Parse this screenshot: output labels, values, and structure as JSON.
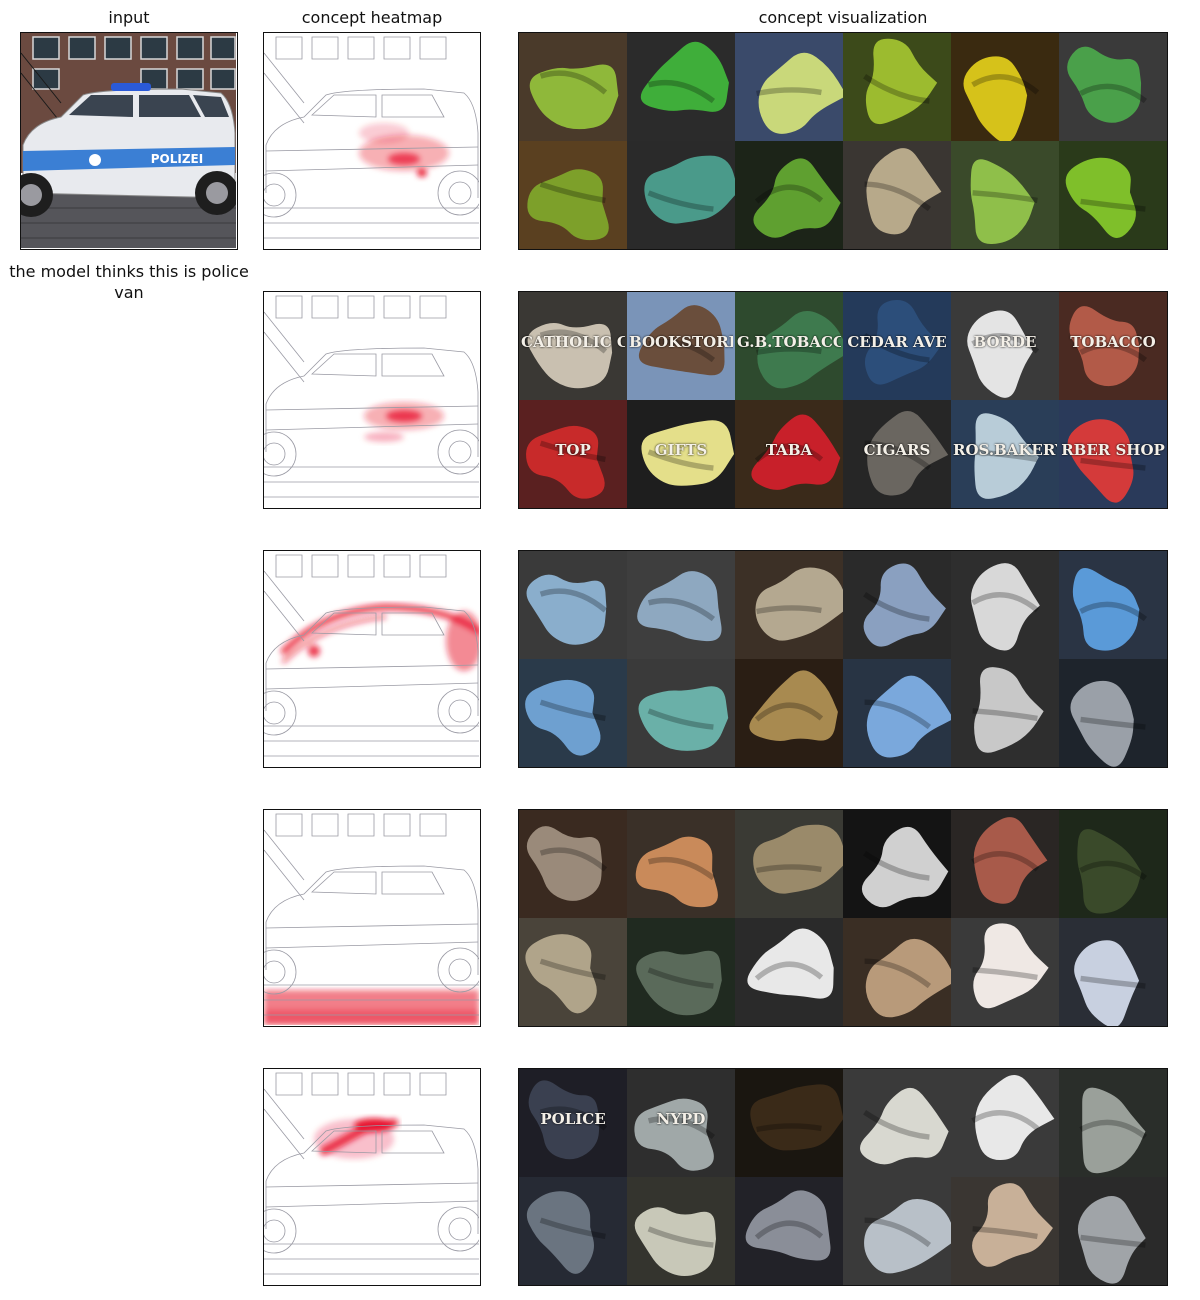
{
  "columns": {
    "input": "input",
    "heatmap": "concept heatmap",
    "visualization": "concept visualization"
  },
  "input_image": {
    "subject": "police car",
    "door_text": "POLIZEI"
  },
  "prediction_caption": "the model thinks this is police van",
  "concept_rows": [
    {
      "heatmap_focus": "wheel-and-panel",
      "tiles": [
        {
          "bg": "#4a3a2a",
          "blob": "#8fb83a",
          "label": ""
        },
        {
          "bg": "#2b2b2b",
          "blob": "#3fae3a",
          "label": ""
        },
        {
          "bg": "#3a4a6a",
          "blob": "#c9d87a",
          "label": ""
        },
        {
          "bg": "#3c4a1a",
          "blob": "#9cbb2f",
          "label": ""
        },
        {
          "bg": "#3a2a10",
          "blob": "#d6c21a",
          "label": ""
        },
        {
          "bg": "#3a3a3a",
          "blob": "#4aa04a",
          "label": ""
        },
        {
          "bg": "#5a4020",
          "blob": "#7da02a",
          "label": ""
        },
        {
          "bg": "#2a2a2a",
          "blob": "#4a9a8a",
          "label": ""
        },
        {
          "bg": "#1c2418",
          "blob": "#5fa030",
          "label": ""
        },
        {
          "bg": "#3a3632",
          "blob": "#b7a98a",
          "label": ""
        },
        {
          "bg": "#3a4a2a",
          "blob": "#8fbf4a",
          "label": ""
        },
        {
          "bg": "#2a3a1a",
          "blob": "#7fbf2a",
          "label": ""
        }
      ]
    },
    {
      "heatmap_focus": "door-text",
      "tiles": [
        {
          "bg": "#3a3834",
          "blob": "#c9c0b0",
          "label": "CATHOLIC C"
        },
        {
          "bg": "#7a94b8",
          "blob": "#6a4e3c",
          "label": "BOOKSTORE"
        },
        {
          "bg": "#2e4a2e",
          "blob": "#3e7a4e",
          "label": "G.B.TOBACCO"
        },
        {
          "bg": "#243a5a",
          "blob": "#2c4e7a",
          "label": "CEDAR AVE"
        },
        {
          "bg": "#3a3a3a",
          "blob": "#e4e4e4",
          "label": "BORDE"
        },
        {
          "bg": "#4a2a22",
          "blob": "#b25a48",
          "label": "TOBACCO"
        },
        {
          "bg": "#5a2020",
          "blob": "#c82a2a",
          "label": "TOP"
        },
        {
          "bg": "#1e1e1e",
          "blob": "#e4df8a",
          "label": "GIFTS"
        },
        {
          "bg": "#3a2a1a",
          "blob": "#c8202a",
          "label": "TABA"
        },
        {
          "bg": "#262626",
          "blob": "#6a6660",
          "label": "CIGARS"
        },
        {
          "bg": "#2a3e58",
          "blob": "#b8ccd8",
          "label": "ROS.BAKERY"
        },
        {
          "bg": "#2a3a5a",
          "blob": "#d43a3a",
          "label": "RBER SHOP"
        }
      ]
    },
    {
      "heatmap_focus": "roof-outline",
      "tiles": [
        {
          "bg": "#3a3a3a",
          "blob": "#8aaecc",
          "label": ""
        },
        {
          "bg": "#3e3e3e",
          "blob": "#8ea8c0",
          "label": ""
        },
        {
          "bg": "#3c3026",
          "blob": "#b4a890",
          "label": ""
        },
        {
          "bg": "#2a2a2a",
          "blob": "#8aa0c0",
          "label": ""
        },
        {
          "bg": "#2e2e2e",
          "blob": "#d8d8d8",
          "label": ""
        },
        {
          "bg": "#2a3444",
          "blob": "#5a9ad8",
          "label": ""
        },
        {
          "bg": "#2a3a4a",
          "blob": "#6ea0d0",
          "label": ""
        },
        {
          "bg": "#3a3a3a",
          "blob": "#6ab0a8",
          "label": ""
        },
        {
          "bg": "#2a1e14",
          "blob": "#a88a50",
          "label": ""
        },
        {
          "bg": "#283444",
          "blob": "#7aa8dc",
          "label": ""
        },
        {
          "bg": "#2e2e2e",
          "blob": "#c8c8c8",
          "label": ""
        },
        {
          "bg": "#1e242c",
          "blob": "#9aa0a8",
          "label": ""
        }
      ]
    },
    {
      "heatmap_focus": "cobblestone-ground",
      "tiles": [
        {
          "bg": "#3a2a20",
          "blob": "#9a8a7a",
          "label": ""
        },
        {
          "bg": "#3a3028",
          "blob": "#c98a5a",
          "label": ""
        },
        {
          "bg": "#3a3a34",
          "blob": "#9a8a6a",
          "label": ""
        },
        {
          "bg": "#141414",
          "blob": "#d0d0d0",
          "label": ""
        },
        {
          "bg": "#2a2624",
          "blob": "#a85a4a",
          "label": ""
        },
        {
          "bg": "#1e281a",
          "blob": "#3a4a2a",
          "label": ""
        },
        {
          "bg": "#4a443a",
          "blob": "#b0a48a",
          "label": ""
        },
        {
          "bg": "#202a20",
          "blob": "#5a6a5a",
          "label": ""
        },
        {
          "bg": "#2a2a2a",
          "blob": "#e8e8e8",
          "label": ""
        },
        {
          "bg": "#3a2e24",
          "blob": "#b89a7a",
          "label": ""
        },
        {
          "bg": "#3a3a3a",
          "blob": "#efe8e4",
          "label": ""
        },
        {
          "bg": "#2a2e36",
          "blob": "#c8d0e0",
          "label": ""
        }
      ]
    },
    {
      "heatmap_focus": "roof-light-bar",
      "tiles": [
        {
          "bg": "#1e1e26",
          "blob": "#3a4050",
          "label": "POLICE"
        },
        {
          "bg": "#2e2e2e",
          "blob": "#a0a8a8",
          "label": "NYPD"
        },
        {
          "bg": "#1a1610",
          "blob": "#3a2a18",
          "label": ""
        },
        {
          "bg": "#3a3a3a",
          "blob": "#d8d8d0",
          "label": ""
        },
        {
          "bg": "#3a3a3a",
          "blob": "#e8e8e8",
          "label": ""
        },
        {
          "bg": "#2a2e2a",
          "blob": "#9aa09a",
          "label": ""
        },
        {
          "bg": "#262a34",
          "blob": "#6a7480",
          "label": ""
        },
        {
          "bg": "#34342e",
          "blob": "#c8c8b8",
          "label": ""
        },
        {
          "bg": "#222228",
          "blob": "#8a8e98",
          "label": ""
        },
        {
          "bg": "#3a3a3a",
          "blob": "#b8c0c8",
          "label": ""
        },
        {
          "bg": "#3a3632",
          "blob": "#c8b098",
          "label": ""
        },
        {
          "bg": "#2a2a2a",
          "blob": "#a0a4a8",
          "label": ""
        }
      ]
    }
  ]
}
